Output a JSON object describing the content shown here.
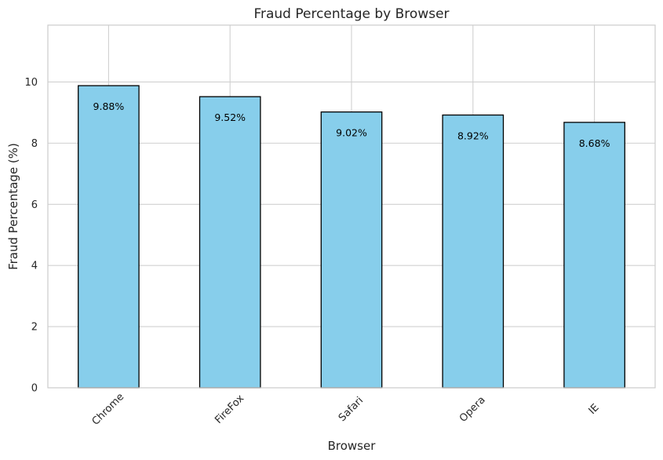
{
  "chart_data": {
    "type": "bar",
    "title": "Fraud Percentage by Browser",
    "xlabel": "Browser",
    "ylabel": "Fraud Percentage (%)",
    "categories": [
      "Chrome",
      "FireFox",
      "Safari",
      "Opera",
      "IE"
    ],
    "values": [
      9.88,
      9.52,
      9.02,
      8.92,
      8.68
    ],
    "data_labels": [
      "9.88%",
      "9.52%",
      "9.02%",
      "8.92%",
      "8.68%"
    ],
    "ylim": [
      0,
      11.86
    ],
    "yticks": [
      0,
      2,
      4,
      6,
      8,
      10
    ],
    "ytick_labels": [
      "0",
      "2",
      "4",
      "6",
      "8",
      "10"
    ],
    "grid": true,
    "colors": {
      "bar_fill": "#87ceeb",
      "bar_edge": "#000000",
      "grid": "#d0d0d0",
      "frame": "#cccccc"
    }
  }
}
